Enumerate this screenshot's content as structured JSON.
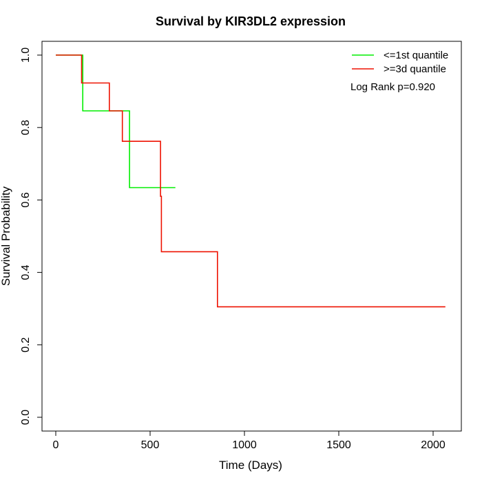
{
  "chart_data": {
    "type": "line",
    "step": true,
    "title": "Survival by KIR3DL2 expression",
    "xlabel": "Time (Days)",
    "ylabel": "Survival Probability",
    "xlim": [
      0,
      2070
    ],
    "ylim": [
      0,
      1
    ],
    "xticks": [
      0,
      500,
      1000,
      1500,
      2000
    ],
    "xtick_labels": [
      "0",
      "500",
      "1000",
      "1500",
      "2000"
    ],
    "yticks": [
      0,
      0.2,
      0.4,
      0.6,
      0.8,
      1.0
    ],
    "ytick_labels": [
      "0.0",
      "0.2",
      "0.4",
      "0.6",
      "0.8",
      "1.0"
    ],
    "legend_position": "top-right",
    "grid": false,
    "annotation": "Log Rank p=0.920",
    "series": [
      {
        "name": "<=1st quantile",
        "color": "#00ee00",
        "x": [
          0,
          143,
          143,
          391,
          391,
          634
        ],
        "y": [
          1.0,
          1.0,
          0.846,
          0.846,
          0.634,
          0.634
        ]
      },
      {
        "name": ">=3d quantile",
        "color": "#ee1100",
        "x": [
          0,
          137,
          137,
          284,
          284,
          353,
          353,
          555,
          555,
          560,
          560,
          857,
          857,
          2065
        ],
        "y": [
          1.0,
          1.0,
          0.923,
          0.923,
          0.846,
          0.846,
          0.762,
          0.762,
          0.61,
          0.61,
          0.457,
          0.457,
          0.305,
          0.305
        ]
      }
    ]
  }
}
